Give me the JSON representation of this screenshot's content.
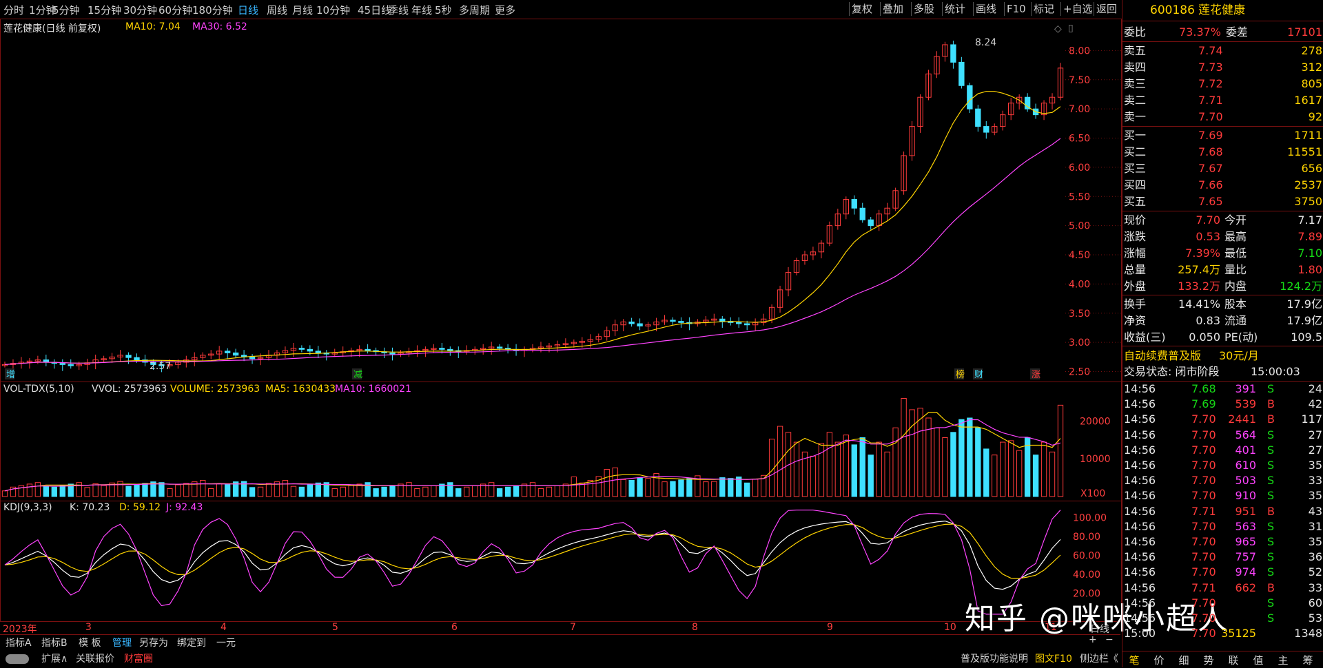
{
  "periods": [
    "分时",
    "1分钟",
    "5分钟",
    "15分钟",
    "30分钟",
    "60分钟",
    "180分钟",
    "日线",
    "周线",
    "月线",
    "10分钟",
    "45日线",
    "季线",
    "年线",
    "5秒",
    "多周期",
    "更多"
  ],
  "active_period": "日线",
  "toolbar": [
    "复权",
    "叠加",
    "多股",
    "统计",
    "画线",
    "F10",
    "标记",
    "+自选",
    "返回"
  ],
  "chart": {
    "title": "莲花健康(日线 前复权)",
    "ma10": "MA10: 7.04",
    "ma30": "MA30: 6.52",
    "high_label": "8.24",
    "low_label": "2.57",
    "price_ticks": [
      "8.00",
      "7.50",
      "7.00",
      "6.50",
      "6.00",
      "5.50",
      "5.00",
      "4.50",
      "4.00",
      "3.50",
      "3.00",
      "2.50"
    ],
    "markers": [
      "增",
      "减",
      "榜",
      "财",
      "涨"
    ]
  },
  "volume": {
    "label": "VOL-TDX(5,10)",
    "vvol": "VVOL: 2573963",
    "volume": "VOLUME: 2573963",
    "ma5": "MA5: 1630433",
    "ma10": "MA10: 1660021",
    "ticks": [
      "20000",
      "10000"
    ],
    "unit": "X100"
  },
  "kdj": {
    "label": "KDJ(9,3,3)",
    "k": "K: 70.23",
    "d": "D: 59.12",
    "j": "J: 92.43",
    "ticks": [
      "100.00",
      "80.00",
      "60.00",
      "40.00",
      "20.00"
    ]
  },
  "x_axis": [
    "2023年",
    "3",
    "4",
    "5",
    "6",
    "7",
    "8",
    "9",
    "10",
    "11"
  ],
  "axis_mode": "日线",
  "bottom_bar1": [
    "指标A",
    "指标B",
    "模 板",
    "管理",
    "另存为",
    "绑定到",
    "一元"
  ],
  "bottom_bar2": [
    "扩展∧",
    "关联报价",
    "财富圈"
  ],
  "bottom_right": [
    "普及版功能说明",
    "图文F10",
    "侧边栏《"
  ],
  "watermark": "知乎 @咪咪小超人",
  "quote": {
    "code": "600186",
    "name": "莲花健康",
    "weibi_label": "委比",
    "weibi": "73.37%",
    "weicha_label": "委差",
    "weicha": "17101",
    "asks": [
      {
        "label": "卖五",
        "price": "7.74",
        "vol": "278"
      },
      {
        "label": "卖四",
        "price": "7.73",
        "vol": "312"
      },
      {
        "label": "卖三",
        "price": "7.72",
        "vol": "805"
      },
      {
        "label": "卖二",
        "price": "7.71",
        "vol": "1617"
      },
      {
        "label": "卖一",
        "price": "7.70",
        "vol": "92"
      }
    ],
    "bids": [
      {
        "label": "买一",
        "price": "7.69",
        "vol": "1711"
      },
      {
        "label": "买二",
        "price": "7.68",
        "vol": "11551"
      },
      {
        "label": "买三",
        "price": "7.67",
        "vol": "656"
      },
      {
        "label": "买四",
        "price": "7.66",
        "vol": "2537"
      },
      {
        "label": "买五",
        "price": "7.65",
        "vol": "3750"
      }
    ],
    "stats": [
      {
        "l1": "现价",
        "v1": "7.70",
        "l2": "今开",
        "v2": "7.17"
      },
      {
        "l1": "涨跌",
        "v1": "0.53",
        "l2": "最高",
        "v2": "7.89"
      },
      {
        "l1": "涨幅",
        "v1": "7.39%",
        "l2": "最低",
        "v2": "7.10"
      },
      {
        "l1": "总量",
        "v1": "257.4万",
        "l2": "量比",
        "v2": "1.80"
      },
      {
        "l1": "外盘",
        "v1": "133.2万",
        "l2": "内盘",
        "v2": "124.2万"
      }
    ],
    "stats2": [
      {
        "l1": "换手",
        "v1": "14.41%",
        "l2": "股本",
        "v2": "17.9亿"
      },
      {
        "l1": "净资",
        "v1": "0.83",
        "l2": "流通",
        "v2": "17.9亿"
      },
      {
        "l1": "收益(三)",
        "v1": "0.050",
        "l2": "PE(动)",
        "v2": "109.5"
      }
    ],
    "promo": "自动续费普及版",
    "promo_price": "30元/月",
    "trade_state": "交易状态: 闭市阶段",
    "trade_time": "15:00:03",
    "ticks": [
      {
        "t": "14:56",
        "p": "7.68",
        "v": "391",
        "bs": "S",
        "n": "24"
      },
      {
        "t": "14:56",
        "p": "7.69",
        "v": "539",
        "bs": "B",
        "n": "42"
      },
      {
        "t": "14:56",
        "p": "7.70",
        "v": "2441",
        "bs": "B",
        "n": "117"
      },
      {
        "t": "14:56",
        "p": "7.70",
        "v": "564",
        "bs": "S",
        "n": "27"
      },
      {
        "t": "14:56",
        "p": "7.70",
        "v": "401",
        "bs": "S",
        "n": "27"
      },
      {
        "t": "14:56",
        "p": "7.70",
        "v": "610",
        "bs": "S",
        "n": "35"
      },
      {
        "t": "14:56",
        "p": "7.70",
        "v": "503",
        "bs": "S",
        "n": "33"
      },
      {
        "t": "14:56",
        "p": "7.70",
        "v": "910",
        "bs": "S",
        "n": "35"
      },
      {
        "t": "14:56",
        "p": "7.71",
        "v": "951",
        "bs": "B",
        "n": "43"
      },
      {
        "t": "14:56",
        "p": "7.70",
        "v": "563",
        "bs": "S",
        "n": "31"
      },
      {
        "t": "14:56",
        "p": "7.70",
        "v": "965",
        "bs": "S",
        "n": "35"
      },
      {
        "t": "14:56",
        "p": "7.70",
        "v": "757",
        "bs": "S",
        "n": "36"
      },
      {
        "t": "14:56",
        "p": "7.70",
        "v": "974",
        "bs": "S",
        "n": "52"
      },
      {
        "t": "14:56",
        "p": "7.71",
        "v": "662",
        "bs": "B",
        "n": "33"
      },
      {
        "t": "14:56",
        "p": "7.70",
        "v": "",
        "bs": "S",
        "n": "60"
      },
      {
        "t": "14:56",
        "p": "7.70",
        "v": "",
        "bs": "S",
        "n": "53"
      },
      {
        "t": "15:00",
        "p": "7.70",
        "v": "35125",
        "bs": "",
        "n": "1348"
      }
    ],
    "side_tabs": [
      "笔",
      "价",
      "细",
      "势",
      "联",
      "值",
      "主",
      "筹"
    ]
  },
  "chart_data": {
    "type": "candlestick",
    "ohlc_pattern": "flat 2.6-3.0 Jan-Aug, rally Sep-Oct to 8.24 peak, consolidation 6.5-7.5",
    "closes": [
      2.62,
      2.64,
      2.66,
      2.68,
      2.7,
      2.66,
      2.64,
      2.62,
      2.6,
      2.62,
      2.65,
      2.7,
      2.72,
      2.75,
      2.78,
      2.74,
      2.7,
      2.66,
      2.62,
      2.6,
      2.62,
      2.66,
      2.7,
      2.74,
      2.78,
      2.8,
      2.85,
      2.82,
      2.78,
      2.75,
      2.72,
      2.74,
      2.78,
      2.82,
      2.86,
      2.9,
      2.88,
      2.85,
      2.82,
      2.8,
      2.82,
      2.84,
      2.86,
      2.88,
      2.86,
      2.84,
      2.82,
      2.8,
      2.82,
      2.84,
      2.86,
      2.88,
      2.9,
      2.88,
      2.86,
      2.84,
      2.86,
      2.88,
      2.9,
      2.92,
      2.9,
      2.88,
      2.86,
      2.88,
      2.9,
      2.92,
      2.94,
      2.96,
      2.98,
      3.0,
      3.02,
      3.05,
      3.1,
      3.2,
      3.3,
      3.35,
      3.32,
      3.28,
      3.3,
      3.35,
      3.38,
      3.36,
      3.34,
      3.32,
      3.35,
      3.38,
      3.4,
      3.36,
      3.34,
      3.32,
      3.3,
      3.34,
      3.4,
      3.6,
      3.9,
      4.2,
      4.4,
      4.5,
      4.55,
      4.7,
      5.0,
      5.2,
      5.45,
      5.3,
      5.1,
      5.0,
      5.2,
      5.3,
      5.6,
      6.2,
      6.7,
      7.2,
      7.6,
      7.9,
      8.1,
      7.8,
      7.4,
      7.0,
      6.7,
      6.6,
      6.7,
      6.9,
      7.1,
      7.2,
      7.0,
      6.9,
      7.1,
      7.2,
      7.7
    ],
    "ma10_end": 7.04,
    "ma30_end": 6.52,
    "kdj": {
      "k": 70.23,
      "d": 59.12,
      "j": 92.43
    }
  }
}
